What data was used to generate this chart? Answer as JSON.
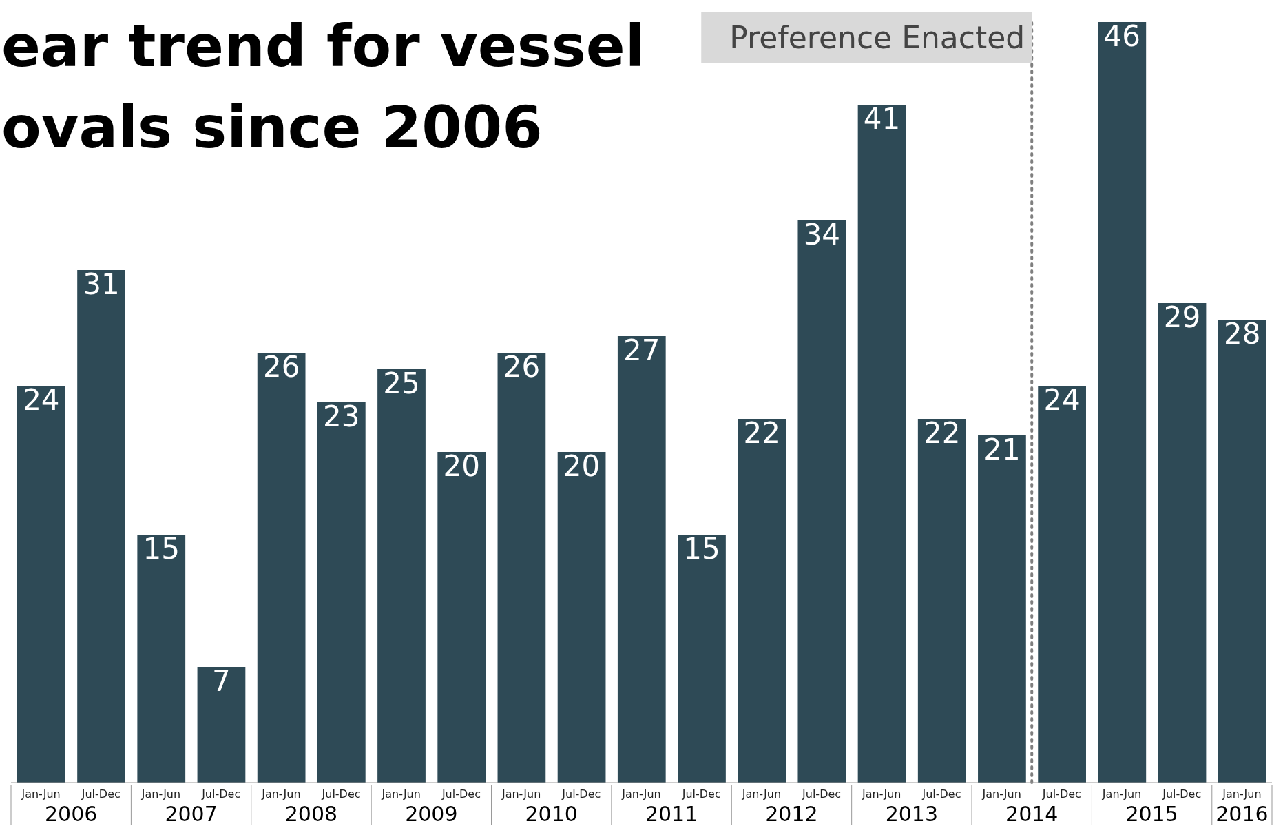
{
  "chart_data": {
    "type": "bar",
    "title": "ear trend for vessel\novals since 2006",
    "categories": [
      "Jan-Jun",
      "Jul-Dec",
      "Jan-Jun",
      "Jul-Dec",
      "Jan-Jun",
      "Jul-Dec",
      "Jan-Jun",
      "Jul-Dec",
      "Jan-Jun",
      "Jul-Dec",
      "Jan-Jun",
      "Jul-Dec",
      "Jan-Jun",
      "Jul-Dec",
      "Jan-Jun",
      "Jul-Dec",
      "Jan-Jun",
      "Jul-Dec",
      "Jan-Jun",
      "Jul-Dec",
      "Jan-Jun"
    ],
    "values": [
      24,
      31,
      15,
      7,
      26,
      23,
      25,
      20,
      26,
      20,
      27,
      15,
      22,
      34,
      41,
      22,
      21,
      24,
      46,
      29,
      28
    ],
    "color": "#2e4a56",
    "data_labels": true,
    "grid": false,
    "legend": false,
    "tick_labels": "x",
    "annotations": [
      "Preference Enacted",
      "2006",
      "2007",
      "2008",
      "2009",
      "2010",
      "2011",
      "2012",
      "2013",
      "2014",
      "2015",
      "2016"
    ]
  }
}
